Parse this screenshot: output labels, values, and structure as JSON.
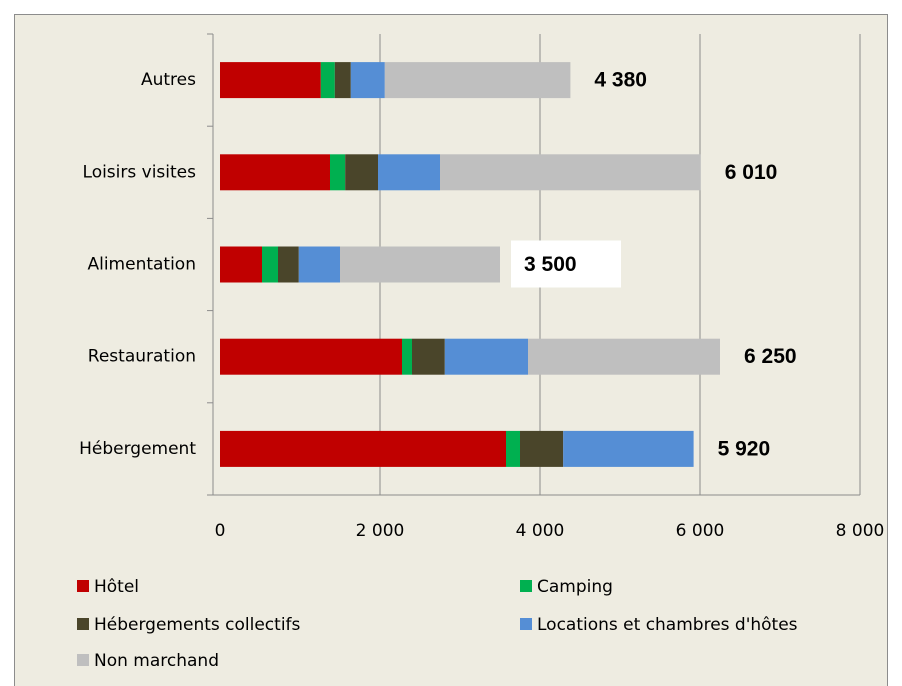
{
  "chart_data": {
    "type": "stacked_barh",
    "categories": [
      "Autres",
      "Loisirs visites",
      "Alimentation",
      "Restauration",
      "Hébergement"
    ],
    "series": [
      {
        "name": "Hôtel",
        "color": "#c00000",
        "values": [
          1260,
          1375,
          525,
          2275,
          3575
        ]
      },
      {
        "name": "Camping",
        "color": "#00b050",
        "values": [
          175,
          190,
          200,
          125,
          175
        ]
      },
      {
        "name": "Hébergements collectifs",
        "color": "#4a452a",
        "values": [
          200,
          410,
          260,
          410,
          540
        ]
      },
      {
        "name": "Locations et chambres d'hôtes",
        "color": "#558ed5",
        "values": [
          425,
          775,
          515,
          1040,
          1630
        ]
      },
      {
        "name": "Non marchand",
        "color": "#bfbfbf",
        "values": [
          2320,
          3260,
          2000,
          2400,
          0
        ]
      }
    ],
    "totals": [
      {
        "value": 4380,
        "label": "4 380"
      },
      {
        "value": 6010,
        "label": "6 010"
      },
      {
        "value": 3500,
        "label": "3 500"
      },
      {
        "value": 6250,
        "label": "6 250"
      },
      {
        "value": 5920,
        "label": "5 920"
      }
    ],
    "xlim": [
      0,
      8000
    ],
    "xticks": [
      0,
      {
        "value": 2000,
        "label": "2 000"
      },
      {
        "value": 4000,
        "label": "4 000"
      },
      {
        "value": 6000,
        "label": "6 000"
      },
      {
        "value": 8000,
        "label": "8 000"
      }
    ],
    "grid": true,
    "legend": "bottom"
  }
}
